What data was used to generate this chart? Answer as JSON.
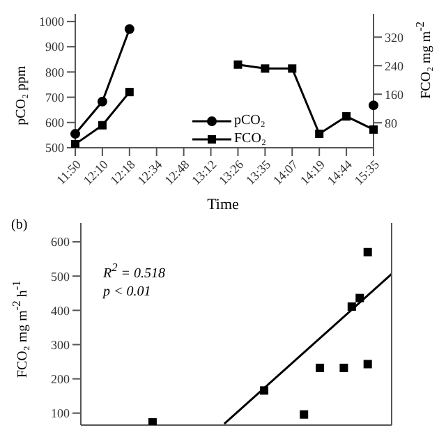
{
  "chart_data": [
    {
      "type": "line",
      "xlabel": "Time",
      "ylabel": "pCO₂ ppm",
      "y2label": "FCO₂ mg m$^{-2}$",
      "categories": [
        "11:50",
        "12:10",
        "12:18",
        "12:34",
        "12:48",
        "13:12",
        "13:26",
        "13:35",
        "14:07",
        "14:19",
        "14:44",
        "15:35"
      ],
      "ylim": [
        500,
        1030
      ],
      "yticks": [
        500,
        600,
        700,
        800,
        900,
        1000
      ],
      "y2lim": [
        10,
        385
      ],
      "y2ticks": [
        80,
        160,
        240,
        320
      ],
      "legend": "bottom",
      "series": [
        {
          "name": "pCO₂",
          "color": "#000000",
          "marker": "circle",
          "values": [
            555,
            683,
            970,
            null,
            null,
            null,
            null,
            null,
            null,
            null,
            null,
            668
          ]
        },
        {
          "name": "FCO₂",
          "color": "#000000",
          "marker": "square",
          "axis": "y2",
          "values": [
            20,
            73,
            166,
            null,
            null,
            null,
            243,
            232,
            232,
            49,
            98,
            61
          ]
        }
      ]
    },
    {
      "type": "scatter",
      "ylabel": "FCO₂ mg m$^{-2}$ h$^{-1}$",
      "annotations": [
        "(b)",
        "R$^{2}$ = 0.518",
        "p < 0.01"
      ],
      "categories": [
        null,
        null,
        null,
        null,
        null,
        null,
        null,
        null,
        null,
        null,
        null,
        null,
        null,
        null,
        null,
        null,
        null,
        null,
        null,
        null,
        null,
        null,
        null,
        null,
        null,
        null,
        null,
        null,
        null,
        null,
        null,
        null,
        null,
        null,
        null,
        null,
        null,
        null,
        null,
        null
      ],
      "ylim": [
        65,
        655
      ],
      "yticks": [
        100,
        200,
        300,
        400,
        500,
        600
      ],
      "series": [
        {
          "type": "scatter",
          "color": "#000000",
          "marker": "square",
          "values": [
            null,
            null,
            null,
            null,
            null,
            null,
            null,
            null,
            null,
            73,
            null,
            null,
            null,
            null,
            null,
            null,
            null,
            null,
            null,
            null,
            null,
            null,
            null,
            166,
            null,
            null,
            null,
            null,
            96,
            null,
            232,
            null,
            null,
            232,
            411,
            436,
            243,
            null,
            null,
            null
          ]
        },
        {
          "type": "scatter",
          "color": "#000000",
          "marker": "square",
          "values": [
            null,
            null,
            null,
            null,
            null,
            null,
            null,
            null,
            null,
            null,
            null,
            null,
            null,
            null,
            null,
            null,
            null,
            null,
            null,
            null,
            null,
            null,
            null,
            null,
            null,
            null,
            null,
            null,
            null,
            null,
            null,
            null,
            null,
            null,
            null,
            null,
            570,
            null,
            null,
            null
          ]
        },
        {
          "type": "line",
          "color": "#000000",
          "marker": "none",
          "values": [
            null,
            null,
            null,
            null,
            null,
            null,
            null,
            null,
            null,
            null,
            null,
            null,
            null,
            null,
            null,
            null,
            null,
            null,
            69,
            null,
            null,
            null,
            null,
            null,
            null,
            null,
            null,
            null,
            null,
            null,
            null,
            null,
            null,
            null,
            null,
            null,
            null,
            null,
            null,
            506
          ]
        }
      ]
    }
  ]
}
